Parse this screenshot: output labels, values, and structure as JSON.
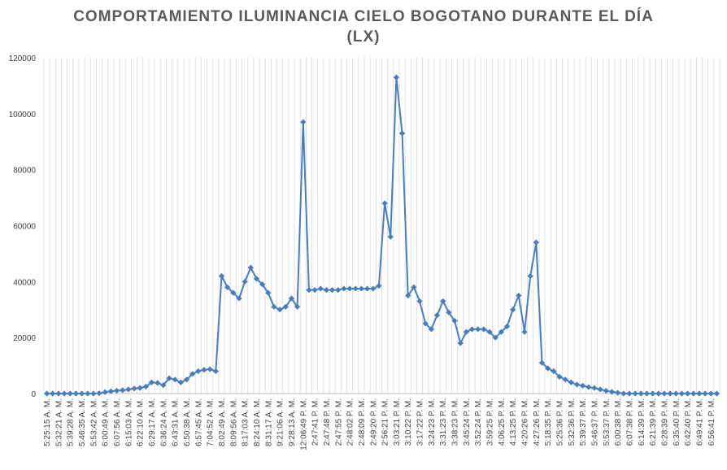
{
  "chart_data": {
    "type": "line",
    "title": "COMPORTAMIENTO ILUMINANCIA CIELO BOGOTANO DURANTE EL DÍA (LX)",
    "categories": [
      "5:25:15 A. M.",
      null,
      "5:32:21 A. M.",
      null,
      "5:39:28 A. M.",
      null,
      "5:46:35 A. M.",
      null,
      "5:53:42 A. M.",
      null,
      "6:00:49 A. M.",
      null,
      "6:07:56 A. M.",
      null,
      "6:15:03 A. M.",
      null,
      "6:22:10 A. M.",
      null,
      "6:29:17 A. M.",
      null,
      "6:36:24 A. M.",
      null,
      "6:43:31 A. M.",
      null,
      "6:50:38 A. M.",
      null,
      "6:57:45 A. M.",
      null,
      "7:04:52 A. M.",
      null,
      "8:02:49 A. M.",
      null,
      "8:09:56 A. M.",
      null,
      "8:17:03 A. M.",
      null,
      "8:24:10 A. M.",
      null,
      "8:31:17 A. M.",
      null,
      "9:21:06 A. M.",
      null,
      "9:28:13 A. M.",
      null,
      "12:06:49 P. M.",
      null,
      "2:47:41 P. M.",
      null,
      "2:47:48 P. M.",
      null,
      "2:47:55 P. M.",
      null,
      "2:48:02 P. M.",
      null,
      "2:48:09 P. M.",
      null,
      "2:49:20 P. M.",
      null,
      "2:56:21 P. M.",
      null,
      "3:03:21 P. M.",
      null,
      "3:10:22 P. M.",
      null,
      "3:17:22 P. M.",
      null,
      "3:24:23 P. M.",
      null,
      "3:31:23 P. M.",
      null,
      "3:38:23 P. M.",
      null,
      "3:45:24 P. M.",
      null,
      "3:52:24 P. M.",
      null,
      "3:59:25 P. M.",
      null,
      "4:06:25 P. M.",
      null,
      "4:13:25 P. M.",
      null,
      "4:20:26 P. M.",
      null,
      "4:27:26 P. M.",
      null,
      "5:18:35 P. M.",
      null,
      "5:25:36 P. M.",
      null,
      "5:32:36 P. M.",
      null,
      "5:39:37 P. M.",
      null,
      "5:46:37 P. M.",
      null,
      "5:53:37 P. M.",
      null,
      "6:00:38 P. M.",
      null,
      "6:07:38 P. M.",
      null,
      "6:14:39 P. M.",
      null,
      "6:21:39 P. M.",
      null,
      "6:28:39 P. M.",
      null,
      "6:35:40 P. M.",
      null,
      "6:42:40 P. M.",
      null,
      "6:49:41 P. M.",
      null,
      "6:56:41 P. M.",
      null
    ],
    "series": [
      {
        "color": "#4a7ebb",
        "values": [
          0,
          0,
          0,
          0,
          0,
          0,
          0,
          0,
          0,
          100,
          500,
          800,
          1000,
          1200,
          1500,
          1800,
          2000,
          2500,
          4000,
          3800,
          3000,
          5500,
          5000,
          4000,
          5000,
          7000,
          8000,
          8500,
          8700,
          8000,
          42000,
          38000,
          36000,
          34000,
          40000,
          45000,
          41000,
          39000,
          36000,
          31000,
          30000,
          31000,
          34000,
          31000,
          97000,
          37000,
          37000,
          37500,
          37000,
          37000,
          37000,
          37500,
          37500,
          37500,
          37500,
          37500,
          37500,
          38500,
          68000,
          56000,
          113000,
          93000,
          35000,
          38000,
          33000,
          25000,
          23000,
          28000,
          33000,
          29000,
          26000,
          18000,
          22000,
          23000,
          23000,
          23000,
          22000,
          20000,
          22000,
          24000,
          30000,
          35000,
          22000,
          42000,
          54000,
          11000,
          9000,
          8000,
          6000,
          5000,
          4000,
          3200,
          2800,
          2300,
          2000,
          1500,
          1000,
          600,
          300,
          0,
          0,
          0,
          0,
          0,
          0,
          0,
          0,
          0,
          0,
          0,
          0,
          0,
          0,
          0,
          0,
          0
        ]
      }
    ],
    "ylim": [
      0,
      120000
    ],
    "yticks": [
      0,
      20000,
      40000,
      60000,
      80000,
      100000,
      120000
    ],
    "grid": "x"
  }
}
